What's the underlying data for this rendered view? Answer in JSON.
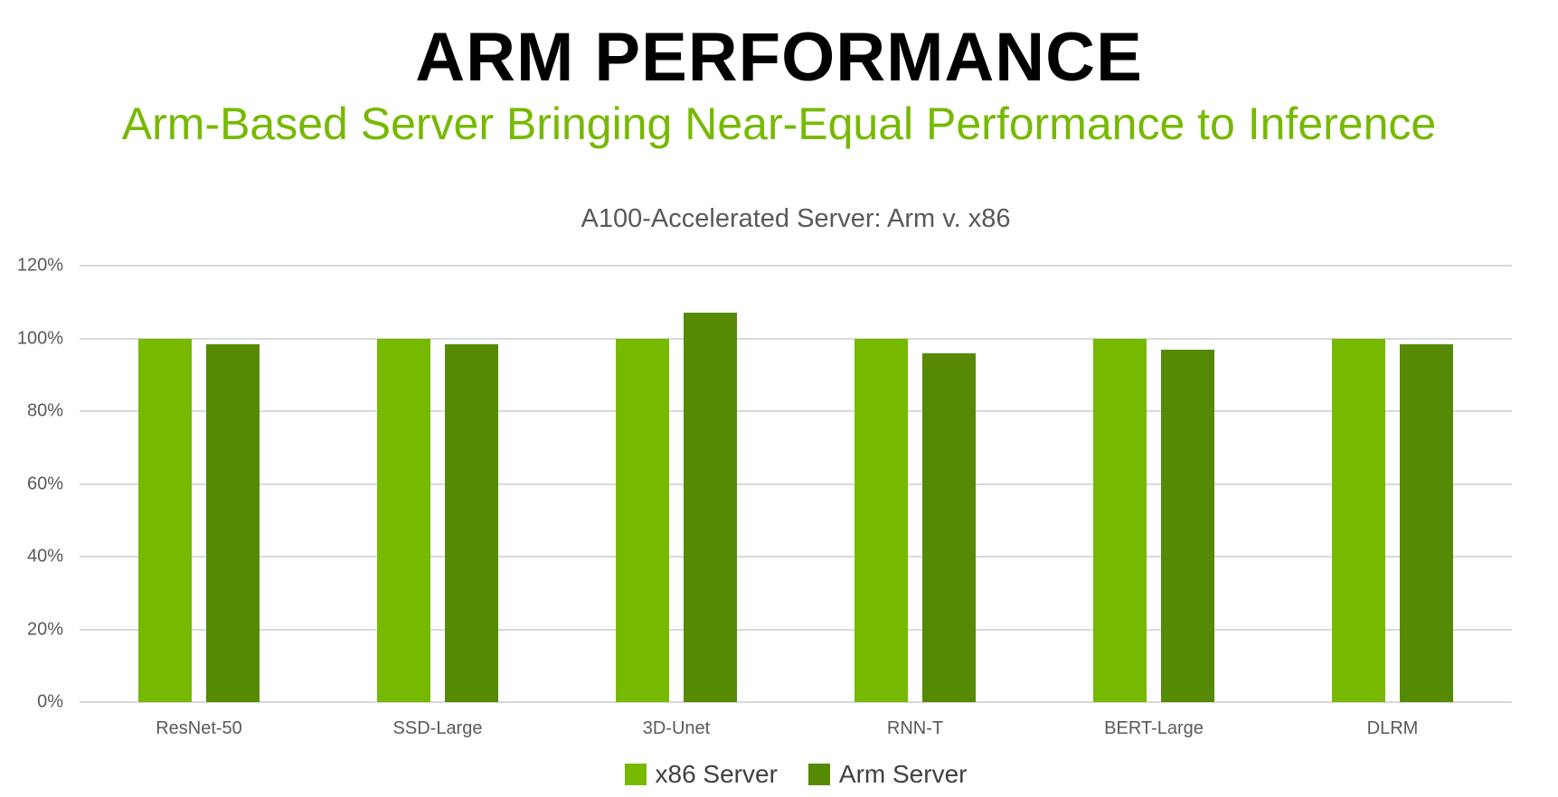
{
  "page": {
    "title": "ARM PERFORMANCE",
    "subtitle": "Arm-Based Server Bringing Near-Equal Performance to Inference"
  },
  "colors": {
    "title_text": "#000000",
    "subtitle_green": "#76B900",
    "x86_series_green": "#76B900",
    "arm_series_green": "#568A05",
    "axis_text_gray": "#595959",
    "legend_text_gray": "#404040",
    "gridline_gray": "#D9D9D9",
    "background": "#FFFFFF"
  },
  "chart_data": {
    "type": "bar",
    "title": "A100-Accelerated Server: Arm v. x86",
    "categories": [
      "ResNet-50",
      "SSD-Large",
      "3D-Unet",
      "RNN-T",
      "BERT-Large",
      "DLRM"
    ],
    "series": [
      {
        "name": "x86 Server",
        "color": "#76B900",
        "values": [
          100,
          100,
          100,
          100,
          100,
          100
        ]
      },
      {
        "name": "Arm Server",
        "color": "#568A05",
        "values": [
          98.5,
          98.5,
          107,
          96,
          97,
          98.5
        ]
      }
    ],
    "xlabel": "",
    "ylabel": "",
    "ylim": [
      0,
      120
    ],
    "yticks": [
      0,
      20,
      40,
      60,
      80,
      100,
      120
    ],
    "ytick_suffix": "%",
    "grid": "horizontal",
    "legend_position": "bottom"
  }
}
